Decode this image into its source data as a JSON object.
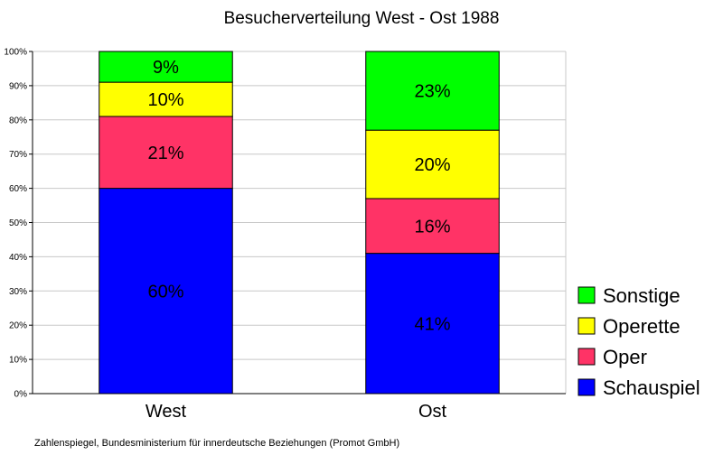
{
  "chart_data": {
    "type": "bar",
    "stacked": true,
    "title": "Besucherverteilung West - Ost 1988",
    "categories": [
      "West",
      "Ost"
    ],
    "series": [
      {
        "name": "Schauspiel",
        "values": [
          60,
          41
        ],
        "labels": [
          "60%",
          "41%"
        ],
        "color": "#0000ff"
      },
      {
        "name": "Oper",
        "values": [
          21,
          16
        ],
        "labels": [
          "21%",
          "16%"
        ],
        "color": "#ff3366"
      },
      {
        "name": "Operette",
        "values": [
          10,
          20
        ],
        "labels": [
          "10%",
          "20%"
        ],
        "color": "#ffff00"
      },
      {
        "name": "Sonstige",
        "values": [
          9,
          23
        ],
        "labels": [
          "9%",
          "23%"
        ],
        "color": "#00ff00"
      }
    ],
    "ylim": [
      0,
      100
    ],
    "yticks": [
      "0%",
      "10%",
      "20%",
      "30%",
      "40%",
      "50%",
      "60%",
      "70%",
      "80%",
      "90%",
      "100%"
    ],
    "grid": true,
    "legend_position": "right",
    "xlabel": "",
    "ylabel": ""
  },
  "source_note": "Zahlenspiegel, Bundesministerium für innerdeutsche Beziehungen (Promot GmbH)"
}
